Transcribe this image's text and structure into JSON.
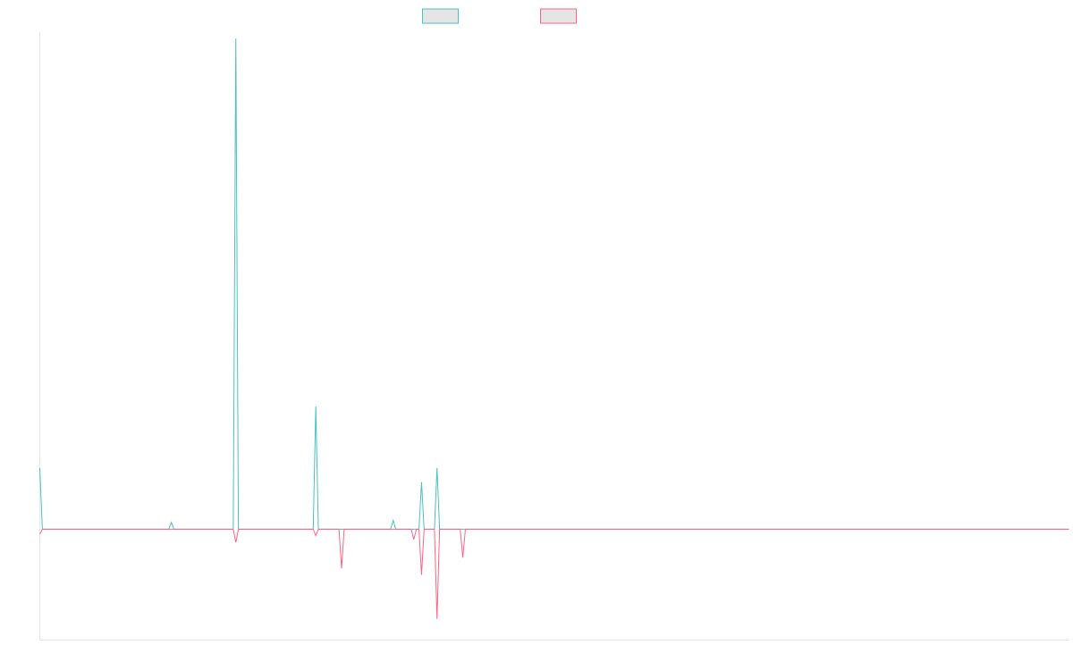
{
  "chart_data": {
    "type": "line",
    "title": "",
    "xlabel": "",
    "ylabel": "",
    "grid": false,
    "legend_position": "top-center",
    "x": [
      0,
      1,
      2,
      3,
      4,
      5,
      6,
      7,
      8,
      9,
      10,
      11,
      12,
      13,
      14,
      15,
      16,
      17,
      18,
      19,
      20,
      21,
      22,
      23,
      24,
      25,
      26,
      27,
      28,
      29,
      30,
      31,
      32,
      33,
      34,
      35,
      36,
      37,
      38,
      39,
      40,
      41,
      42,
      43,
      44,
      45,
      46,
      47,
      48,
      49,
      50,
      51,
      52,
      53,
      54,
      55,
      56,
      57,
      58,
      59,
      60,
      61,
      62,
      63,
      64,
      65,
      66,
      67,
      68,
      69,
      70,
      71,
      72,
      73,
      74,
      75,
      76,
      77,
      78,
      79,
      80,
      81,
      82,
      83,
      84,
      85,
      86,
      87,
      88,
      89,
      90,
      91,
      92,
      93,
      94,
      95,
      96,
      97,
      98,
      99,
      100,
      101,
      102,
      103,
      104,
      105,
      106,
      107,
      108,
      109,
      110,
      111,
      112,
      113,
      114,
      115,
      116,
      117,
      118,
      119,
      120,
      121,
      122,
      123,
      124,
      125,
      126,
      127,
      128,
      129,
      130,
      131,
      132,
      133,
      134,
      135,
      136,
      137,
      138,
      139,
      140,
      141,
      142,
      143,
      144,
      145,
      146,
      147,
      148,
      149,
      150,
      151,
      152,
      153,
      154,
      155,
      156,
      157,
      158,
      159,
      160,
      161,
      162,
      163,
      164,
      165,
      166,
      167,
      168,
      169,
      170,
      171,
      172,
      173,
      174,
      175,
      176,
      177,
      178,
      179,
      180,
      181,
      182,
      183,
      184,
      185,
      186,
      187,
      188,
      189,
      190,
      191,
      192,
      193,
      194,
      195,
      196,
      197,
      198,
      199,
      200,
      201,
      202,
      203,
      204,
      205,
      206,
      207,
      208,
      209,
      210,
      211,
      212,
      213,
      214,
      215,
      216,
      217,
      218,
      219,
      220,
      221,
      222,
      223,
      224,
      225,
      226,
      227,
      228,
      229,
      230,
      231,
      232,
      233,
      234,
      235,
      236,
      237,
      238,
      239,
      240,
      241,
      242,
      243,
      244,
      245,
      246,
      247,
      248,
      249,
      250,
      251,
      252,
      253,
      254,
      255,
      256,
      257,
      258,
      259,
      260,
      261,
      262,
      263,
      264,
      265,
      266,
      267,
      268,
      269,
      270,
      271,
      272,
      273,
      274,
      275,
      276,
      277,
      278,
      279,
      280,
      281,
      282,
      283,
      284,
      285,
      286,
      287,
      288,
      289,
      290,
      291,
      292,
      293,
      294,
      295,
      296,
      297,
      298,
      299,
      300,
      301,
      302,
      303,
      304,
      305,
      306,
      307,
      308,
      309,
      310,
      311,
      312,
      313,
      314,
      315,
      316,
      317,
      318,
      319,
      320,
      321,
      322,
      323,
      324,
      325,
      326,
      327,
      328,
      329,
      330,
      331,
      332,
      333,
      334,
      335,
      336,
      337,
      338,
      339,
      340,
      341,
      342,
      343,
      344,
      345,
      346,
      347,
      348,
      349,
      350,
      351,
      352,
      353,
      354,
      355,
      356,
      357,
      358,
      359,
      360,
      361,
      362,
      363,
      364,
      365,
      366,
      367,
      368,
      369,
      370,
      371,
      372,
      373,
      374,
      375,
      376,
      377,
      378,
      379,
      380,
      381,
      382,
      383,
      384,
      385,
      386,
      387,
      388,
      389,
      390,
      391,
      392,
      393,
      394,
      395,
      396,
      397,
      398,
      399
    ],
    "ylim": [
      -22.6,
      101.3
    ],
    "series": [
      {
        "name": "",
        "color": "#4bc0c0",
        "fill": "#e5e5e5",
        "nonzero_points": {
          "0": 12.5,
          "51": 1.4,
          "76": 100,
          "107": 25,
          "137": 1.8,
          "148": 9.6,
          "154": 12.5
        }
      },
      {
        "name": "",
        "color": "#ff6384",
        "fill": "#e5e5e5",
        "nonzero_points": {
          "0": -1,
          "76": -2.7,
          "107": -1.3,
          "117": -8,
          "145": -2.1,
          "148": -9.3,
          "154": -18.3,
          "164": -5.8
        }
      }
    ]
  }
}
